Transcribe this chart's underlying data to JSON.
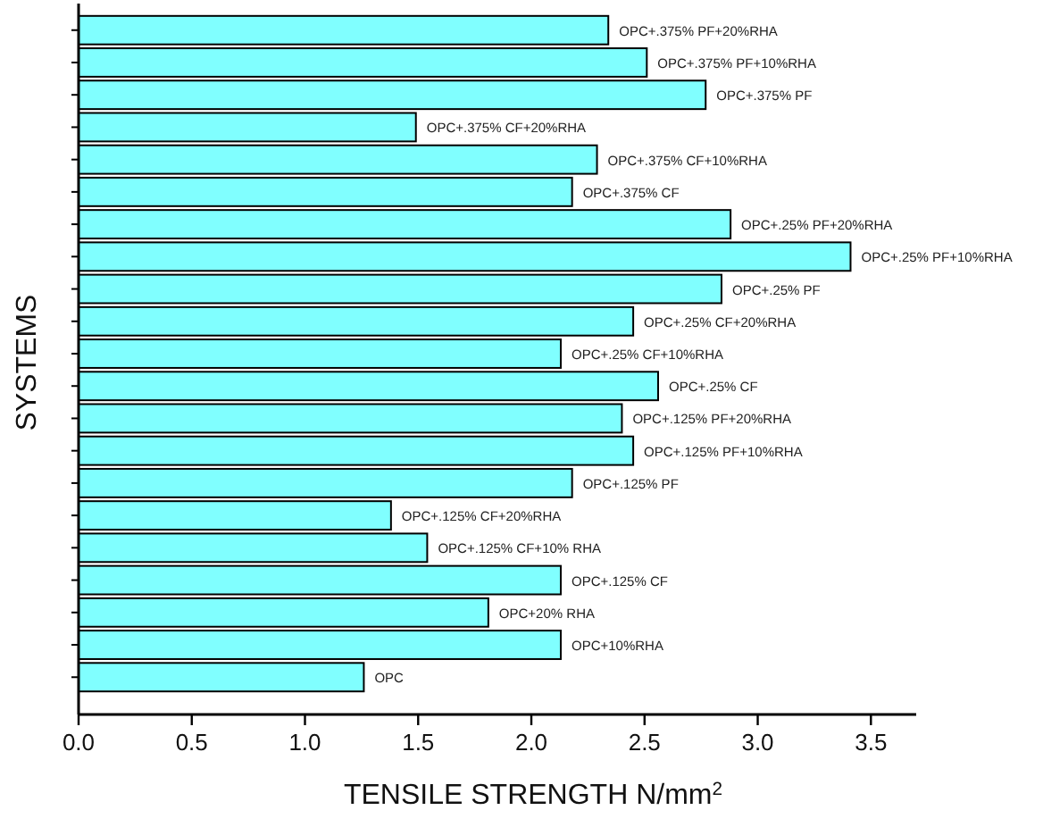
{
  "chart_data": {
    "type": "bar",
    "orientation": "horizontal",
    "xlabel": "TENSILE STRENGTH N/mm$^{2}$",
    "ylabel": "SYSTEMS",
    "categories": [
      "OPC+.375% PF+20%RHA",
      "OPC+.375% PF+10%RHA",
      "OPC+.375% PF",
      "OPC+.375% CF+20%RHA",
      "OPC+.375% CF+10%RHA",
      "OPC+.375% CF",
      "OPC+.25% PF+20%RHA",
      "OPC+.25% PF+10%RHA",
      "OPC+.25% PF",
      "OPC+.25% CF+20%RHA",
      "OPC+.25% CF+10%RHA",
      "OPC+.25% CF",
      "OPC+.125% PF+20%RHA",
      "OPC+.125% PF+10%RHA",
      "OPC+.125% PF",
      "OPC+.125% CF+20%RHA",
      "OPC+.125% CF+10% RHA",
      "OPC+.125% CF",
      "OPC+20% RHA",
      "OPC+10%RHA",
      "OPC"
    ],
    "values": [
      2.34,
      2.51,
      2.77,
      1.49,
      2.29,
      2.18,
      2.88,
      3.41,
      2.84,
      2.45,
      2.13,
      2.56,
      2.4,
      2.45,
      2.18,
      1.38,
      1.54,
      2.13,
      1.81,
      2.13,
      1.26
    ],
    "color": "#80ffff",
    "xlim": [
      0,
      3.7
    ],
    "xticks": [
      {
        "value": 0,
        "label": "0.0"
      },
      {
        "value": 0.5,
        "label": "0.5"
      },
      {
        "value": 1,
        "label": "1.0"
      },
      {
        "value": 1.5,
        "label": "1.5"
      },
      {
        "value": 2,
        "label": "2.0"
      },
      {
        "value": 2.5,
        "label": "2.5"
      },
      {
        "value": 3,
        "label": "3.0"
      },
      {
        "value": 3.5,
        "label": "3.5"
      }
    ],
    "grid": false
  }
}
